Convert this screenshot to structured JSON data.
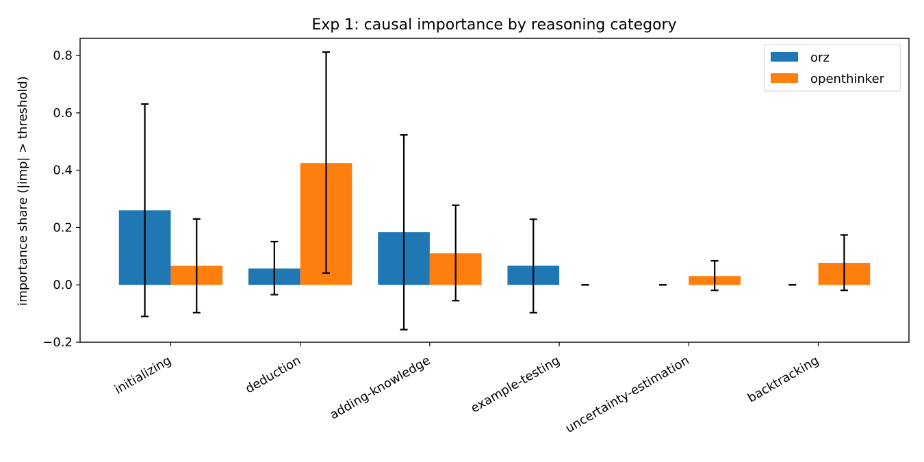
{
  "chart_data": {
    "type": "bar",
    "title": "Exp 1: causal importance by reasoning category",
    "xlabel": "",
    "ylabel": "importance share (|imp| > threshold)",
    "ylim": [
      -0.2,
      0.86
    ],
    "yticks": [
      -0.2,
      0.0,
      0.2,
      0.4,
      0.6,
      0.8
    ],
    "ytick_labels": [
      "−0.2",
      "0.0",
      "0.2",
      "0.4",
      "0.6",
      "0.8"
    ],
    "categories": [
      "initializing",
      "deduction",
      "adding-knowledge",
      "example-testing",
      "uncertainty-estimation",
      "backtracking"
    ],
    "series": [
      {
        "name": "orz",
        "color": "#1f77b4",
        "values": [
          0.26,
          0.057,
          0.184,
          0.067,
          0.0,
          0.0
        ],
        "err_low": [
          -0.11,
          -0.034,
          -0.156,
          -0.097,
          0.0,
          0.0
        ],
        "err_high": [
          0.631,
          0.151,
          0.523,
          0.229,
          0.0,
          0.0
        ]
      },
      {
        "name": "openthinker",
        "color": "#ff7f0e",
        "values": [
          0.067,
          0.425,
          0.11,
          0.0,
          0.031,
          0.077
        ],
        "err_low": [
          -0.097,
          0.041,
          -0.055,
          0.0,
          -0.019,
          -0.019
        ],
        "err_high": [
          0.23,
          0.812,
          0.278,
          0.0,
          0.084,
          0.174
        ]
      }
    ],
    "grid": false,
    "legend_position": "top-right"
  }
}
